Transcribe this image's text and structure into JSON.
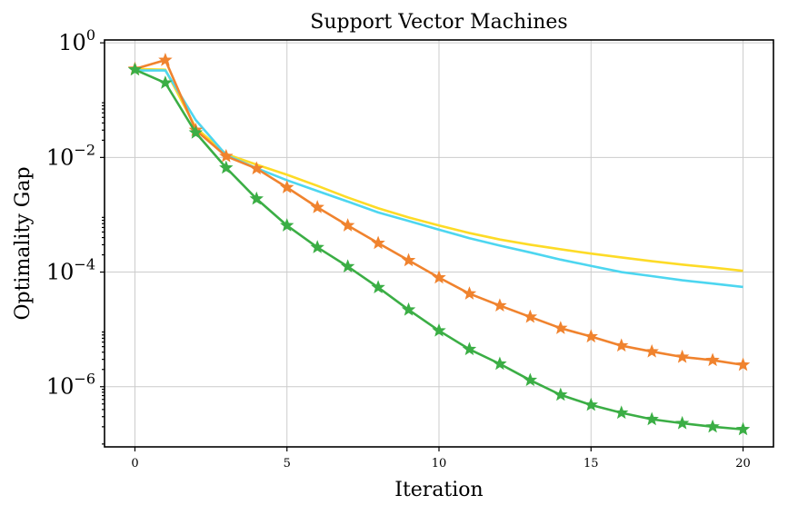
{
  "chart_data": {
    "type": "line",
    "title": "Support Vector Machines",
    "xlabel": "Iteration",
    "ylabel": "Optimality Gap",
    "xlim": [
      -1,
      21
    ],
    "ylim_log10": [
      -7.05,
      0.05
    ],
    "yscale": "log",
    "grid": true,
    "x": [
      0,
      1,
      2,
      3,
      4,
      5,
      6,
      7,
      8,
      9,
      10,
      11,
      12,
      13,
      14,
      15,
      16,
      17,
      18,
      19,
      20
    ],
    "xticks": [
      0,
      5,
      10,
      15,
      20
    ],
    "xtick_labels": [
      "0",
      "5",
      "10",
      "15",
      "20"
    ],
    "yticks": [
      {
        "base": "10",
        "exp": "0",
        "log10": 0
      },
      {
        "base": "10",
        "exp": "−2",
        "log10": -2
      },
      {
        "base": "10",
        "exp": "−4",
        "log10": -4
      },
      {
        "base": "10",
        "exp": "−6",
        "log10": -6
      }
    ],
    "series": [
      {
        "color": "#FDDB27",
        "marker": "none",
        "values": [
          0.35,
          0.34,
          0.033,
          0.0115,
          0.0075,
          0.005,
          0.0032,
          0.002,
          0.0013,
          0.0009,
          0.00065,
          0.00048,
          0.00037,
          0.0003,
          0.00025,
          0.00021,
          0.00018,
          0.000155,
          0.000135,
          0.00012,
          0.000105
        ]
      },
      {
        "color": "#4DD6F0",
        "marker": "none",
        "values": [
          0.33,
          0.33,
          0.045,
          0.011,
          0.0065,
          0.004,
          0.0026,
          0.0017,
          0.0011,
          0.00078,
          0.00055,
          0.00039,
          0.00029,
          0.00022,
          0.000165,
          0.000128,
          0.0001,
          8.5e-05,
          7.2e-05,
          6.3e-05,
          5.5e-05
        ]
      },
      {
        "color": "#F0832E",
        "marker": "star",
        "values": [
          0.35,
          0.5,
          0.03,
          0.0105,
          0.0064,
          0.003,
          0.00135,
          0.00065,
          0.00032,
          0.00016,
          8e-05,
          4.2e-05,
          2.6e-05,
          1.65e-05,
          1.05e-05,
          7.5e-06,
          5.2e-06,
          4.1e-06,
          3.3e-06,
          2.9e-06,
          2.4e-06
        ]
      },
      {
        "color": "#3BAE45",
        "marker": "star",
        "values": [
          0.34,
          0.2,
          0.027,
          0.0066,
          0.0019,
          0.00065,
          0.00027,
          0.000125,
          5.4e-05,
          2.2e-05,
          9.5e-06,
          4.5e-06,
          2.5e-06,
          1.3e-06,
          7.2e-07,
          4.8e-07,
          3.5e-07,
          2.7e-07,
          2.3e-07,
          2e-07,
          1.8e-07
        ]
      }
    ]
  }
}
